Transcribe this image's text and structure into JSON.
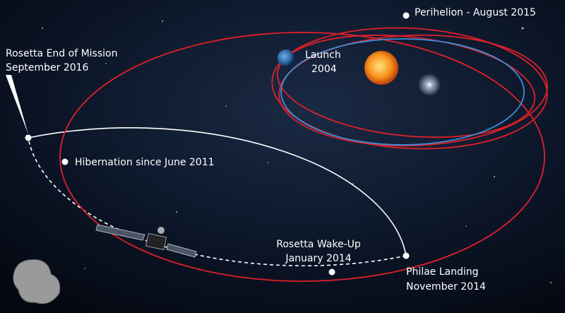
{
  "labels": {
    "perihelion": {
      "lines": [
        "Perihelion - August 2015"
      ]
    },
    "launch": {
      "lines": [
        "Launch",
        "2004"
      ]
    },
    "end_of_mission": {
      "lines": [
        "Rosetta End of Mission",
        "September 2016"
      ]
    },
    "hibernation": {
      "lines": [
        "Hibernation since June 2011"
      ]
    },
    "wake_up": {
      "lines": [
        "Rosetta Wake-Up",
        "January 2014"
      ]
    },
    "philae_landing": {
      "lines": [
        "Philae Landing",
        "November 2014"
      ]
    }
  }
}
